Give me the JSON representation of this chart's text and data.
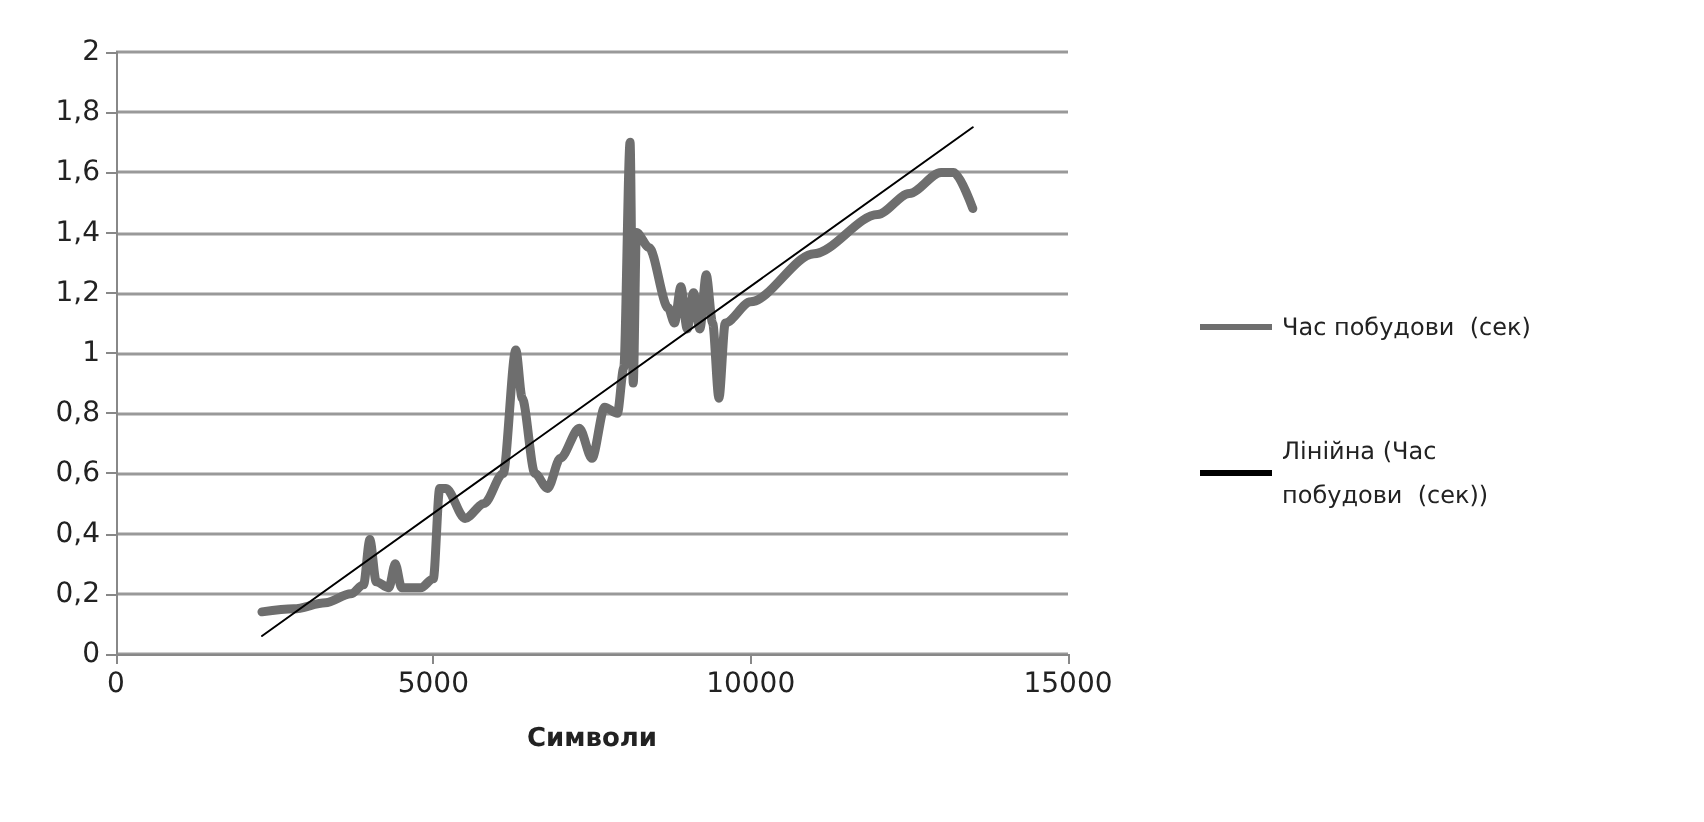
{
  "chart_data": {
    "type": "line",
    "xlabel": "Символи",
    "xlim": [
      0,
      15000
    ],
    "xticks": [
      0,
      5000,
      10000,
      15000
    ],
    "ylim": [
      0,
      2
    ],
    "yticks": [
      0,
      {
        "value": 0.2,
        "label": "0,2"
      },
      {
        "value": 0.4,
        "label": "0,4"
      },
      {
        "value": 0.6,
        "label": "0,6"
      },
      {
        "value": 0.8,
        "label": "0,8"
      },
      1,
      {
        "value": 1.2,
        "label": "1,2"
      },
      {
        "value": 1.4,
        "label": "1,4"
      },
      {
        "value": 1.6,
        "label": "1,6"
      },
      {
        "value": 1.8,
        "label": "1,8"
      },
      2
    ],
    "grid": "y",
    "legend": "right",
    "marker": "none",
    "line_style": "solid",
    "series": [
      {
        "name": "Час побудови  (сек)",
        "color": "#6e6e6e",
        "x": [
          2300,
          2800,
          3300,
          3700,
          3900,
          4000,
          4100,
          4300,
          4400,
          4500,
          4800,
          5000,
          5100,
          5200,
          5500,
          5800,
          6100,
          6300,
          6400,
          6600,
          6800,
          7000,
          7300,
          7500,
          7700,
          7900,
          8000,
          8100,
          8150,
          8200,
          8400,
          8700,
          8800,
          8900,
          9000,
          9100,
          9200,
          9300,
          9400,
          9500,
          9600,
          10000,
          11000,
          12000,
          12500,
          13000,
          13200,
          13500
        ],
        "values": [
          0.14,
          0.15,
          0.17,
          0.2,
          0.23,
          0.38,
          0.24,
          0.22,
          0.3,
          0.22,
          0.22,
          0.25,
          0.55,
          0.55,
          0.45,
          0.5,
          0.6,
          1.01,
          0.85,
          0.6,
          0.55,
          0.65,
          0.75,
          0.65,
          0.82,
          0.8,
          0.95,
          1.7,
          0.9,
          1.4,
          1.35,
          1.15,
          1.1,
          1.22,
          1.08,
          1.2,
          1.08,
          1.26,
          1.1,
          0.85,
          1.1,
          1.17,
          1.33,
          1.46,
          1.53,
          1.6,
          1.6,
          1.48
        ]
      },
      {
        "name": "Лінійна (Час побудови  (сек))",
        "color": "#000000",
        "x": [
          2300,
          13500
        ],
        "values": [
          0.06,
          1.75
        ]
      }
    ]
  }
}
